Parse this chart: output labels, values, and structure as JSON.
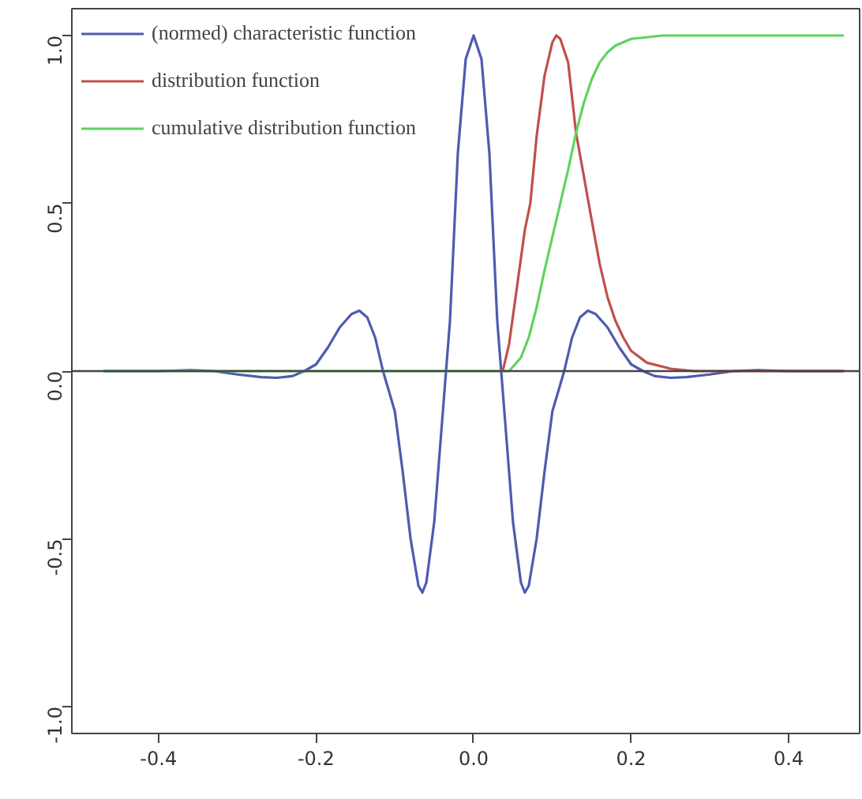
{
  "chart_data": {
    "type": "line",
    "xlim": [
      -0.51,
      0.49
    ],
    "ylim": [
      -1.08,
      1.08
    ],
    "xticks": [
      -0.4,
      -0.2,
      {
        "value": 0,
        "label": "0.0"
      },
      0.2,
      0.4
    ],
    "yticks": [
      {
        "value": -1,
        "label": "-1.0"
      },
      -0.5,
      {
        "value": 0,
        "label": "0.0"
      },
      0.5,
      {
        "value": 1,
        "label": "1.0"
      }
    ],
    "grid": false,
    "legend": "top left",
    "marker": "none",
    "line_style": "solid",
    "ref_lines": [
      {
        "axis": "y",
        "value": 0,
        "color": "#444444"
      }
    ],
    "series": [
      {
        "name": "(normed) characteristic function",
        "color": "#4f5ab0",
        "x": [
          -0.47,
          -0.4,
          -0.36,
          -0.33,
          -0.3,
          -0.27,
          -0.25,
          -0.23,
          -0.215,
          -0.2,
          -0.185,
          -0.17,
          -0.155,
          -0.145,
          -0.135,
          -0.125,
          -0.115,
          -0.1,
          -0.09,
          -0.08,
          -0.07,
          -0.065,
          -0.06,
          -0.05,
          -0.04,
          -0.035,
          -0.03,
          -0.02,
          -0.01,
          0,
          0.01,
          0.02,
          0.03,
          0.035,
          0.04,
          0.05,
          0.06,
          0.065,
          0.07,
          0.08,
          0.09,
          0.1,
          0.115,
          0.125,
          0.135,
          0.145,
          0.155,
          0.17,
          0.185,
          0.2,
          0.215,
          0.23,
          0.25,
          0.27,
          0.3,
          0.33,
          0.36,
          0.4,
          0.47
        ],
        "values": [
          0,
          0,
          0.003,
          0,
          -0.01,
          -0.018,
          -0.02,
          -0.015,
          0,
          0.02,
          0.07,
          0.13,
          0.17,
          0.18,
          0.16,
          0.1,
          0,
          -0.12,
          -0.3,
          -0.5,
          -0.64,
          -0.66,
          -0.63,
          -0.45,
          -0.15,
          0,
          0.15,
          0.65,
          0.93,
          1,
          0.93,
          0.65,
          0.15,
          0,
          -0.15,
          -0.45,
          -0.63,
          -0.66,
          -0.64,
          -0.5,
          -0.3,
          -0.12,
          0,
          0.1,
          0.16,
          0.18,
          0.17,
          0.13,
          0.07,
          0.02,
          0,
          -0.015,
          -0.02,
          -0.018,
          -0.01,
          0,
          0.003,
          0,
          0
        ]
      },
      {
        "name": "distribution function",
        "color": "#c0504d",
        "x": [
          0.037,
          0.045,
          0.055,
          0.065,
          0.072,
          0.08,
          0.09,
          0.1,
          0.105,
          0.11,
          0.12,
          0.13,
          0.14,
          0.146,
          0.16,
          0.17,
          0.18,
          0.19,
          0.2,
          0.22,
          0.25,
          0.28,
          0.47
        ],
        "values": [
          0,
          0.08,
          0.25,
          0.42,
          0.5,
          0.7,
          0.88,
          0.98,
          1,
          0.99,
          0.92,
          0.71,
          0.58,
          0.5,
          0.32,
          0.22,
          0.15,
          0.1,
          0.06,
          0.025,
          0.007,
          0,
          0
        ]
      },
      {
        "name": "cumulative distribution function",
        "color": "#5fd35f",
        "x": [
          -0.47,
          0.045,
          0.06,
          0.07,
          0.08,
          0.09,
          0.1,
          0.11,
          0.12,
          0.13,
          0.14,
          0.15,
          0.16,
          0.17,
          0.18,
          0.2,
          0.24,
          0.47
        ],
        "values": [
          0,
          0,
          0.04,
          0.1,
          0.19,
          0.3,
          0.4,
          0.5,
          0.6,
          0.71,
          0.8,
          0.87,
          0.92,
          0.95,
          0.97,
          0.99,
          1,
          1
        ]
      }
    ]
  }
}
